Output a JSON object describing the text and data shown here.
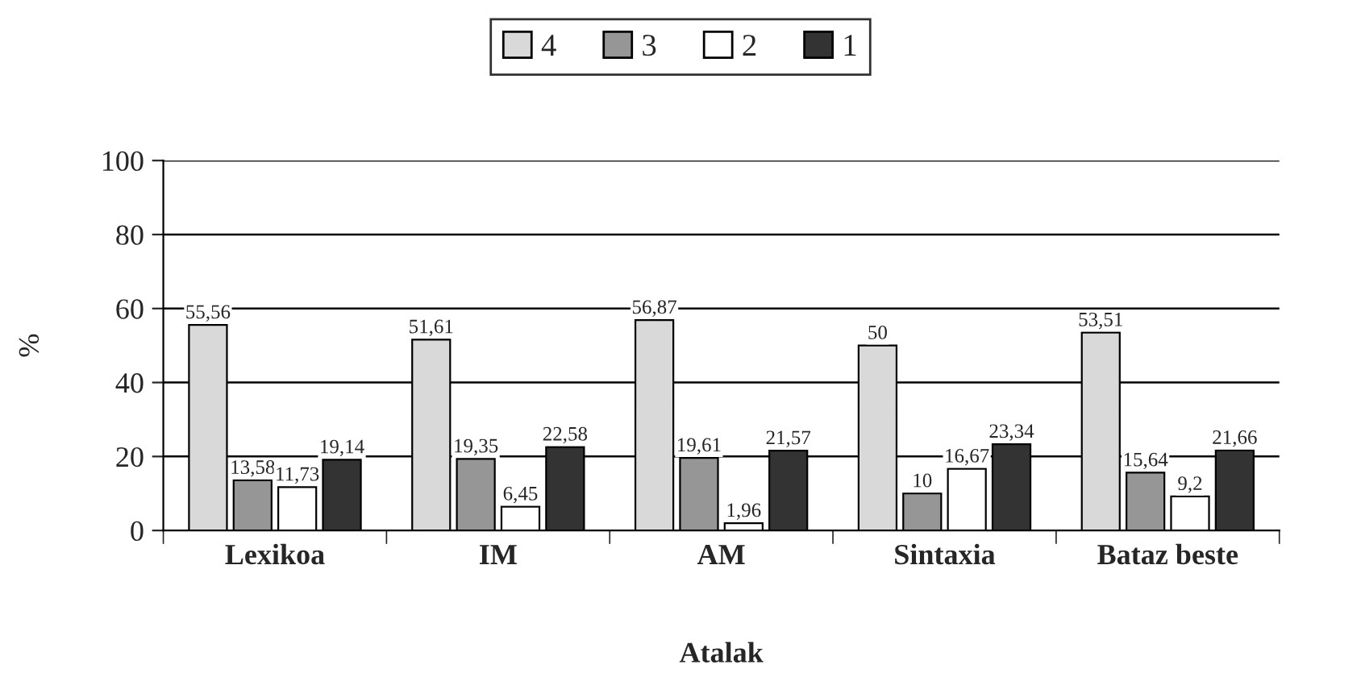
{
  "chart_data": {
    "type": "bar",
    "xlabel": "Atalak",
    "ylabel": "%",
    "categories": [
      "Lexikoa",
      "IM",
      "AM",
      "Sintaxia",
      "Bataz beste"
    ],
    "series": [
      {
        "name": "4",
        "color": "#d9d9d9",
        "values": [
          55.56,
          51.61,
          56.87,
          50,
          53.51
        ],
        "value_labels": [
          "55,56",
          "51,61",
          "56,87",
          "50",
          "53,51"
        ]
      },
      {
        "name": "3",
        "color": "#969696",
        "values": [
          13.58,
          19.35,
          19.61,
          10,
          15.64
        ],
        "value_labels": [
          "13,58",
          "19,35",
          "19,61",
          "10",
          "15,64"
        ]
      },
      {
        "name": "2",
        "color": "#ffffff",
        "values": [
          11.73,
          6.45,
          1.96,
          16.67,
          9.2
        ],
        "value_labels": [
          "11,73",
          "6,45",
          "1,96",
          "16,67",
          "9,2"
        ]
      },
      {
        "name": "1",
        "color": "#333333",
        "values": [
          19.14,
          22.58,
          21.57,
          23.34,
          21.66
        ],
        "value_labels": [
          "19,14",
          "22,58",
          "21,57",
          "23,34",
          "21,66"
        ]
      }
    ],
    "ylim": [
      0,
      100
    ],
    "yticks": [
      0,
      20,
      40,
      60,
      80,
      100
    ],
    "grid": "y",
    "legend": "top"
  }
}
